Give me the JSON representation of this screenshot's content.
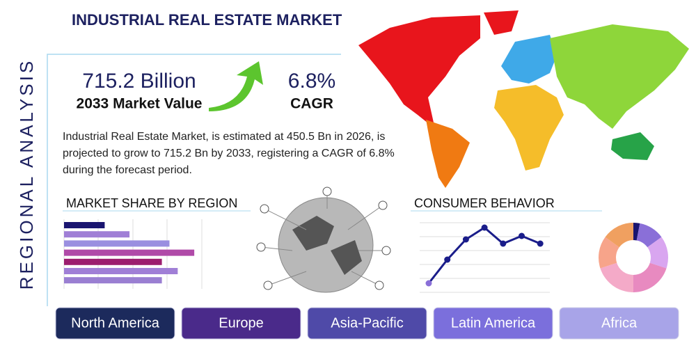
{
  "header": {
    "title": "INDUSTRIAL REAL ESTATE MARKET",
    "side_label": "REGIONAL ANALYSIS"
  },
  "stats": {
    "market_value": "715.2 Billion",
    "market_value_label": "2033 Market Value",
    "cagr": "6.8%",
    "cagr_label": "CAGR"
  },
  "description": "Industrial Real Estate Market, is estimated at 450.5 Bn in 2026, is projected to grow to 715.2 Bn by 2033, registering a CAGR of 6.8% during the forecast period.",
  "market_share": {
    "title": "MARKET SHARE BY REGION",
    "values": [
      59,
      95,
      153,
      189,
      142,
      165,
      142
    ],
    "colors": [
      "#1a1570",
      "#a07fd6",
      "#9a8fe0",
      "#b04aa8",
      "#9c1d6e",
      "#a07fd6",
      "#9a7fd2"
    ]
  },
  "consumer_behavior": {
    "title": "CONSUMER BEHAVIOR",
    "line_values": [
      13,
      47,
      76,
      93,
      70,
      81,
      70
    ],
    "line_color": "#1a1d8a",
    "donut_values": [
      3,
      12,
      15,
      20,
      20,
      15,
      15
    ],
    "donut_colors": [
      "#1a1570",
      "#8a6fd8",
      "#d9a6f0",
      "#e88ac0",
      "#f4aac8",
      "#f7a48a",
      "#f0a060"
    ]
  },
  "regions": [
    "North America",
    "Europe",
    "Asia-Pacific",
    "Latin America",
    "Africa"
  ]
}
